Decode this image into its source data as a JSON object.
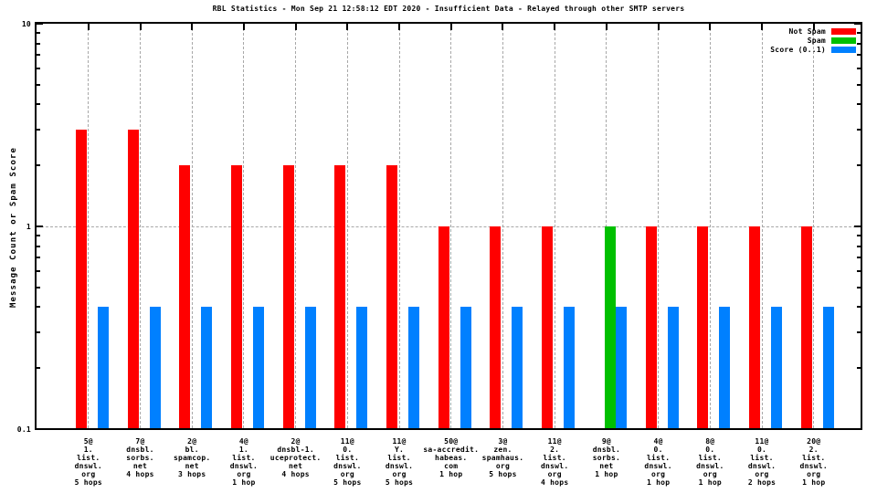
{
  "title": "RBL Statistics - Mon Sep 21 12:58:12 EDT 2020 - Insufficient Data - Relayed through other SMTP servers",
  "ylabel": "Message Count or Spam Score",
  "colors": {
    "background": "#ffffff",
    "axis": "#000000",
    "grid": "#a8a8a8",
    "not_spam": "#ff0000",
    "spam": "#00c000",
    "score": "#0080ff"
  },
  "chart_data": {
    "type": "bar",
    "yscale": "log",
    "ylim": [
      0.1,
      10
    ],
    "grid": {
      "vertical_per_category": true,
      "horizontal_at": 1
    },
    "legend_position": "top-right-inside",
    "ytick_labels": [
      {
        "value": 10,
        "label": "10"
      },
      {
        "value": 1,
        "label": "1"
      },
      {
        "value": 0.1,
        "label": "0.1"
      }
    ],
    "categories": [
      {
        "label_lines": [
          "5@",
          "1.",
          "list.",
          "dnswl.",
          "org",
          "5 hops"
        ]
      },
      {
        "label_lines": [
          "7@",
          "dnsbl.",
          "sorbs.",
          "net",
          "4 hops"
        ]
      },
      {
        "label_lines": [
          "2@",
          "bl.",
          "spamcop.",
          "net",
          "3 hops"
        ]
      },
      {
        "label_lines": [
          "4@",
          "1.",
          "list.",
          "dnswl.",
          "org",
          "1 hop"
        ]
      },
      {
        "label_lines": [
          "2@",
          "dnsbl-1.",
          "uceprotect.",
          "net",
          "4 hops"
        ]
      },
      {
        "label_lines": [
          "11@",
          "0.",
          "list.",
          "dnswl.",
          "org",
          "5 hops"
        ]
      },
      {
        "label_lines": [
          "11@",
          "Y.",
          "list.",
          "dnswl.",
          "org",
          "5 hops"
        ]
      },
      {
        "label_lines": [
          "50@",
          "sa-accredit.",
          "habeas.",
          "com",
          "1 hop"
        ]
      },
      {
        "label_lines": [
          "3@",
          "zen.",
          "spamhaus.",
          "org",
          "5 hops"
        ]
      },
      {
        "label_lines": [
          "11@",
          "2.",
          "list.",
          "dnswl.",
          "org",
          "4 hops"
        ]
      },
      {
        "label_lines": [
          "9@",
          "dnsbl.",
          "sorbs.",
          "net",
          "1 hop"
        ]
      },
      {
        "label_lines": [
          "4@",
          "0.",
          "list.",
          "dnswl.",
          "org",
          "1 hop"
        ]
      },
      {
        "label_lines": [
          "8@",
          "0.",
          "list.",
          "dnswl.",
          "org",
          "1 hop"
        ]
      },
      {
        "label_lines": [
          "11@",
          "0.",
          "list.",
          "dnswl.",
          "org",
          "2 hops"
        ]
      },
      {
        "label_lines": [
          "20@",
          "2.",
          "list.",
          "dnswl.",
          "org",
          "1 hop"
        ]
      }
    ],
    "series": [
      {
        "name": "Not Spam",
        "color": "#ff0000",
        "values": [
          3,
          3,
          2,
          2,
          2,
          2,
          2,
          1,
          1,
          1,
          0,
          1,
          1,
          1,
          1
        ]
      },
      {
        "name": "Spam",
        "color": "#00c000",
        "values": [
          0,
          0,
          0,
          0,
          0,
          0,
          0,
          0,
          0,
          0,
          1,
          0,
          0,
          0,
          0
        ]
      },
      {
        "name": "Score (0..1)",
        "color": "#0080ff",
        "values": [
          0.4,
          0.4,
          0.4,
          0.4,
          0.4,
          0.4,
          0.4,
          0.4,
          0.4,
          0.4,
          0.4,
          0.4,
          0.4,
          0.4,
          0.4
        ]
      }
    ]
  }
}
